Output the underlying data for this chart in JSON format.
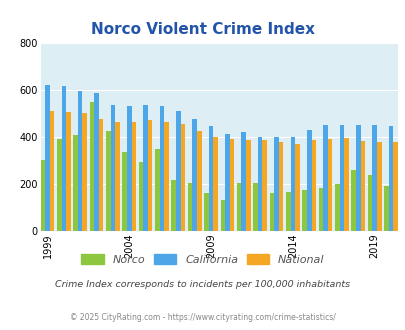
{
  "title": "Norco Violent Crime Index",
  "years": [
    1999,
    2000,
    2001,
    2002,
    2003,
    2004,
    2005,
    2006,
    2007,
    2008,
    2009,
    2010,
    2011,
    2012,
    2013,
    2014,
    2015,
    2016,
    2017,
    2018,
    2019,
    2020
  ],
  "norco": [
    300,
    390,
    410,
    550,
    425,
    335,
    295,
    350,
    215,
    205,
    160,
    130,
    205,
    205,
    160,
    165,
    175,
    185,
    200,
    260,
    240,
    190
  ],
  "california": [
    622,
    615,
    595,
    585,
    535,
    530,
    535,
    530,
    510,
    475,
    445,
    412,
    422,
    400,
    400,
    398,
    430,
    450,
    450,
    450,
    450,
    445
  ],
  "national": [
    510,
    505,
    500,
    475,
    465,
    465,
    470,
    465,
    455,
    425,
    400,
    390,
    385,
    385,
    380,
    370,
    385,
    390,
    395,
    383,
    380,
    380
  ],
  "norco_color": "#8dc63f",
  "california_color": "#4da6e8",
  "national_color": "#f5a623",
  "bg_color": "#deeef5",
  "ylim": [
    0,
    800
  ],
  "yticks": [
    0,
    200,
    400,
    600,
    800
  ],
  "xtick_labels": [
    "1999",
    "2004",
    "2009",
    "2014",
    "2019"
  ],
  "xtick_positions": [
    1999,
    2004,
    2009,
    2014,
    2019
  ],
  "subtitle": "Crime Index corresponds to incidents per 100,000 inhabitants",
  "footer": "© 2025 CityRating.com - https://www.cityrating.com/crime-statistics/",
  "title_color": "#2255aa",
  "subtitle_color": "#444444",
  "footer_color": "#888888"
}
